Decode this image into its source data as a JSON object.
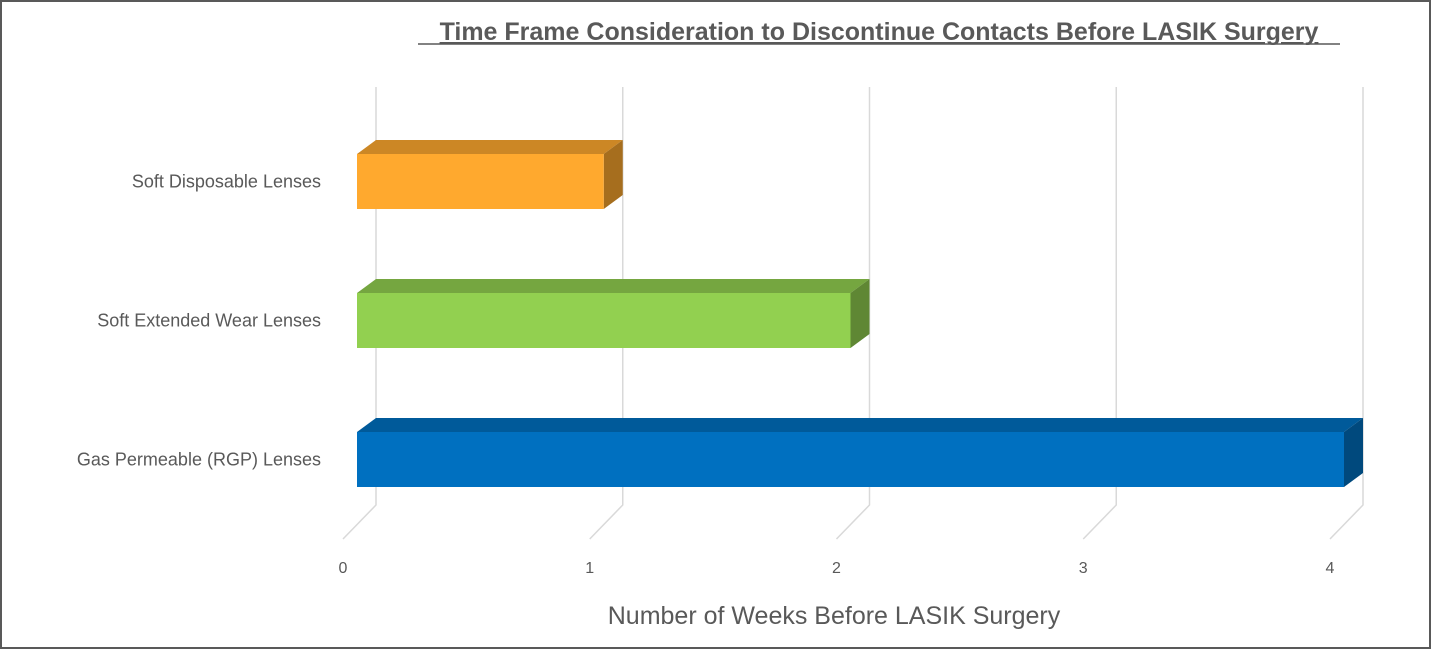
{
  "chart_data": {
    "type": "bar",
    "orientation": "horizontal",
    "style": "3d",
    "title": "Time Frame Consideration to Discontinue Contacts Before LASIK Surgery",
    "xlabel": "Number of Weeks Before LASIK Surgery",
    "ylabel": "",
    "categories": [
      "Soft Disposable Lenses",
      "Soft Extended Wear Lenses",
      "Gas Permeable (RGP) Lenses"
    ],
    "values": [
      1,
      2,
      4
    ],
    "colors": [
      "#FFA92E",
      "#92D050",
      "#0070C0"
    ],
    "xlim": [
      0,
      4
    ],
    "xticks": [
      "0",
      "1",
      "2",
      "3",
      "4"
    ],
    "grid": true,
    "legend": "none"
  }
}
